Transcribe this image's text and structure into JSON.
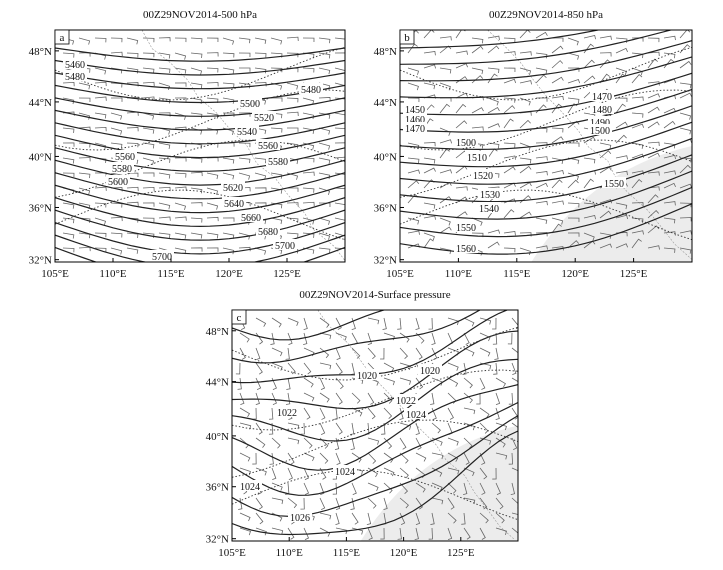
{
  "panels": [
    {
      "title": "00Z29NOV2014-500 hPa",
      "letter": "a",
      "lat_labels": [
        "48°N",
        "44°N",
        "40°N",
        "36°N",
        "32°N"
      ],
      "lon_labels": [
        "105°E",
        "110°E",
        "115°E",
        "120°E",
        "125°E"
      ],
      "contour_labels": [
        5460,
        5480,
        5480,
        5500,
        5520,
        5540,
        5560,
        5560,
        5580,
        5580,
        5600,
        5620,
        5640,
        5660,
        5680,
        5700,
        5700
      ]
    },
    {
      "title": "00Z29NOV2014-850 hPa",
      "letter": "b",
      "lat_labels": [
        "48°N",
        "44°N",
        "40°N",
        "36°N",
        "32°N"
      ],
      "lon_labels": [
        "105°E",
        "110°E",
        "115°E",
        "120°E",
        "125°E"
      ],
      "contour_labels": [
        1450,
        1460,
        1470,
        1470,
        1480,
        1490,
        1500,
        1500,
        1510,
        1520,
        1530,
        1540,
        1550,
        1550,
        1560
      ]
    },
    {
      "title": "00Z29NOV2014-Surface pressure",
      "letter": "c",
      "lat_labels": [
        "48°N",
        "44°N",
        "40°N",
        "36°N",
        "32°N"
      ],
      "lon_labels": [
        "105°E",
        "110°E",
        "115°E",
        "120°E",
        "125°E"
      ],
      "contour_labels": [
        1020,
        1020,
        1022,
        1022,
        1024,
        1024,
        1024,
        1026
      ]
    }
  ]
}
